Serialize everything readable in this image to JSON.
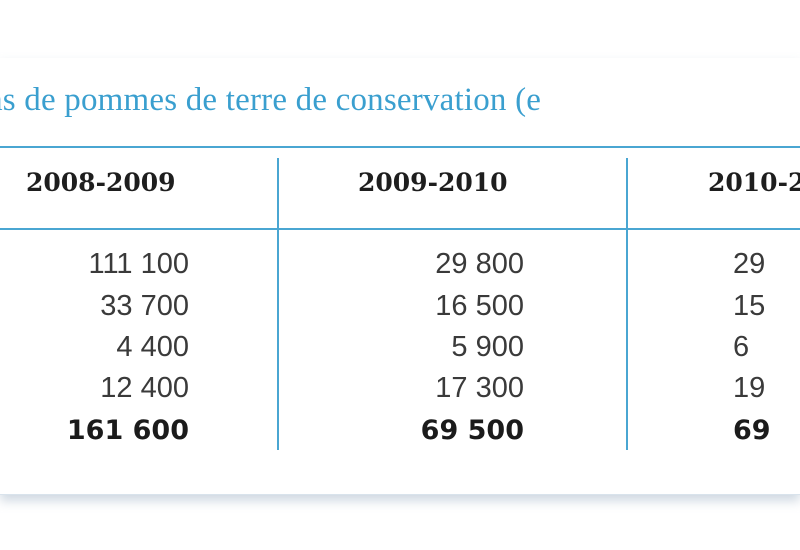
{
  "table": {
    "title": "ions de pommes de terre de conservation (e",
    "columns": [
      "2008-2009",
      "2009-2010",
      "2010-2"
    ],
    "rows": [
      [
        "111 100",
        "29 800",
        "29"
      ],
      [
        "33 700",
        "16 500",
        "15"
      ],
      [
        "4 400",
        "5 900",
        "6"
      ],
      [
        "12 400",
        "17 300",
        "19"
      ],
      [
        "161 600",
        "69 500",
        "69"
      ]
    ],
    "accent_color": "#4aa6d2",
    "title_color": "#3a9fcf"
  }
}
